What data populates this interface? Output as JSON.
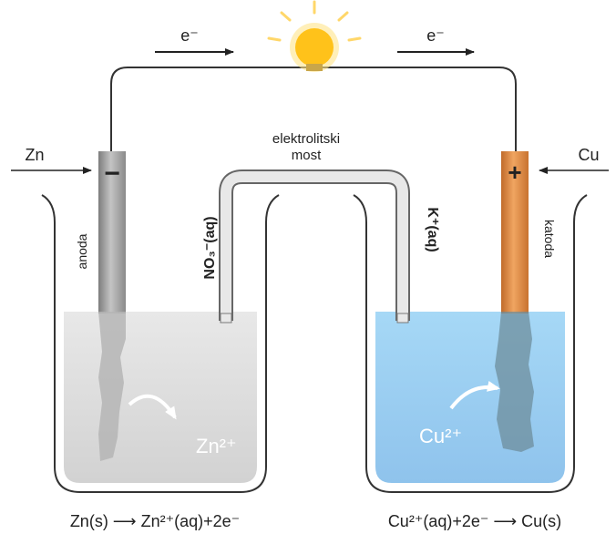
{
  "electron_flow": {
    "left": "e⁻",
    "right": "e⁻"
  },
  "salt_bridge": {
    "line1": "elektrolitski",
    "line2": "most"
  },
  "anode": {
    "metal": "Zn",
    "sign": "−",
    "name": "anoda",
    "anion": "NO₃⁻(aq)",
    "ion": "Zn²⁺",
    "reaction": "Zn(s) ⟶ Zn²⁺(aq)+2e⁻"
  },
  "cathode": {
    "metal": "Cu",
    "sign": "+",
    "name": "katoda",
    "cation": "K⁺(aq)",
    "ion": "Cu²⁺",
    "reaction": "Cu²⁺(aq)+2e⁻ ⟶ Cu(s)"
  },
  "colors": {
    "zinc_electrode": "#9a9a9a",
    "copper_electrode": "#d9823f",
    "zinc_solution": "#dcdcdc",
    "copper_solution": "#a9d6f2",
    "bulb": "#ffc21a"
  },
  "icons": {
    "light": "light-bulb-icon",
    "curved_arrow": "curved-arrow-icon"
  }
}
